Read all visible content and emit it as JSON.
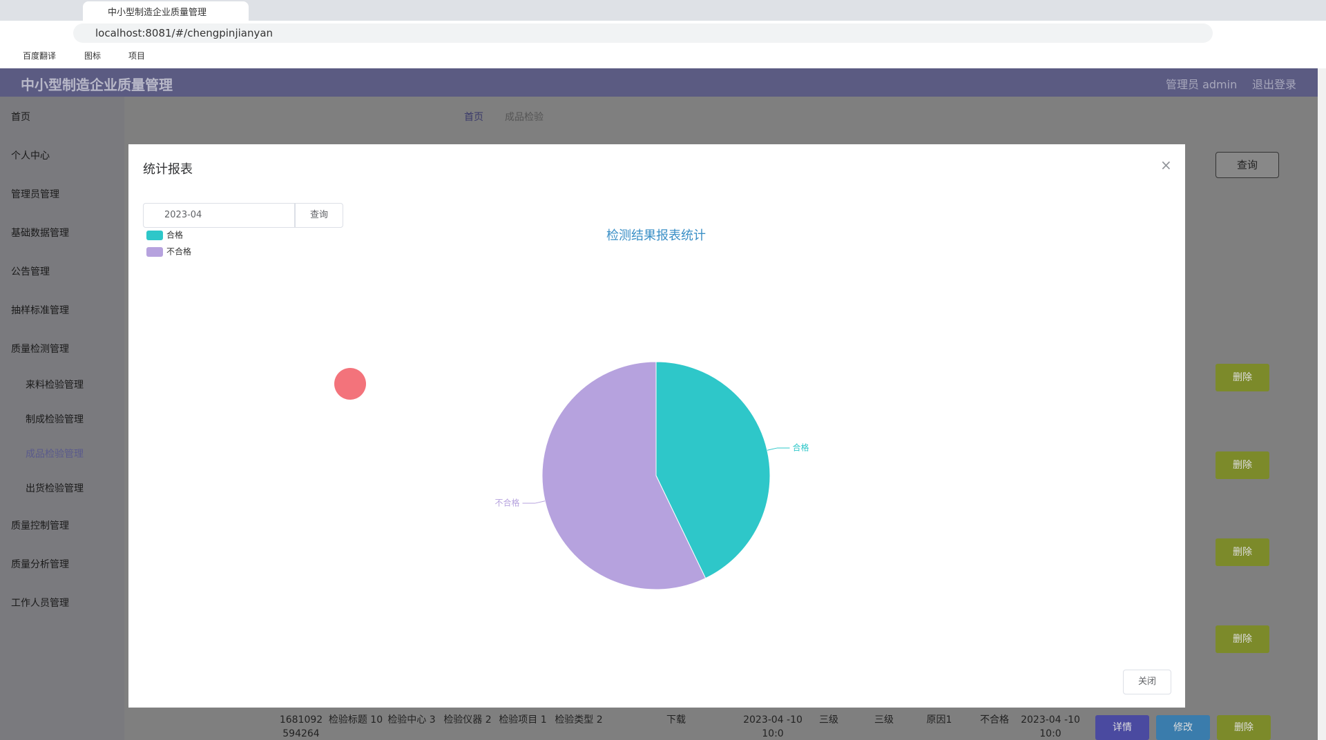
{
  "browser": {
    "tab_title": "中小型制造企业质量管理",
    "url": "localhost:8081/#/chengpinjianyan",
    "bookmarks": [
      "百度翻译",
      "图标",
      "项目"
    ]
  },
  "header": {
    "title": "中小型制造企业质量管理",
    "user": "管理员 admin",
    "logout": "退出登录"
  },
  "sidebar": [
    "首页",
    "个人中心",
    "管理员管理",
    "基础数据管理",
    "公告管理",
    "抽样标准管理",
    "质量检测管理",
    "来料检验管理",
    "制成检验管理",
    "成品检验管理",
    "出货检验管理",
    "质量控制管理",
    "质量分析管理",
    "工作人员管理"
  ],
  "breadcrumb": [
    "首页",
    "成品检验"
  ],
  "search_button": "查询",
  "row_buttons": [
    "删除",
    "删除",
    "删除",
    "删除"
  ],
  "table_row": {
    "cells": [
      "1681092 594264",
      "检验标题 10",
      "检验中心 3",
      "检验仪器 2",
      "检验项目 1",
      "检验类型 2",
      "下载",
      "2023-04 -10 10:0",
      "三级",
      "三级",
      "原因1",
      "不合格",
      "2023-04 -10 10:0"
    ],
    "actions": [
      "详情",
      "修改",
      "删除"
    ]
  },
  "modal": {
    "title": "统计报表",
    "date": "2023-04",
    "query": "查询",
    "close": "关闭",
    "chart_data": {
      "type": "pie",
      "title": "检测结果报表统计",
      "categories": [
        "合格",
        "不合格"
      ],
      "values": [
        3,
        4
      ],
      "colors": [
        "#2ec7c9",
        "#b6a2de"
      ],
      "legend": "top-left"
    }
  }
}
